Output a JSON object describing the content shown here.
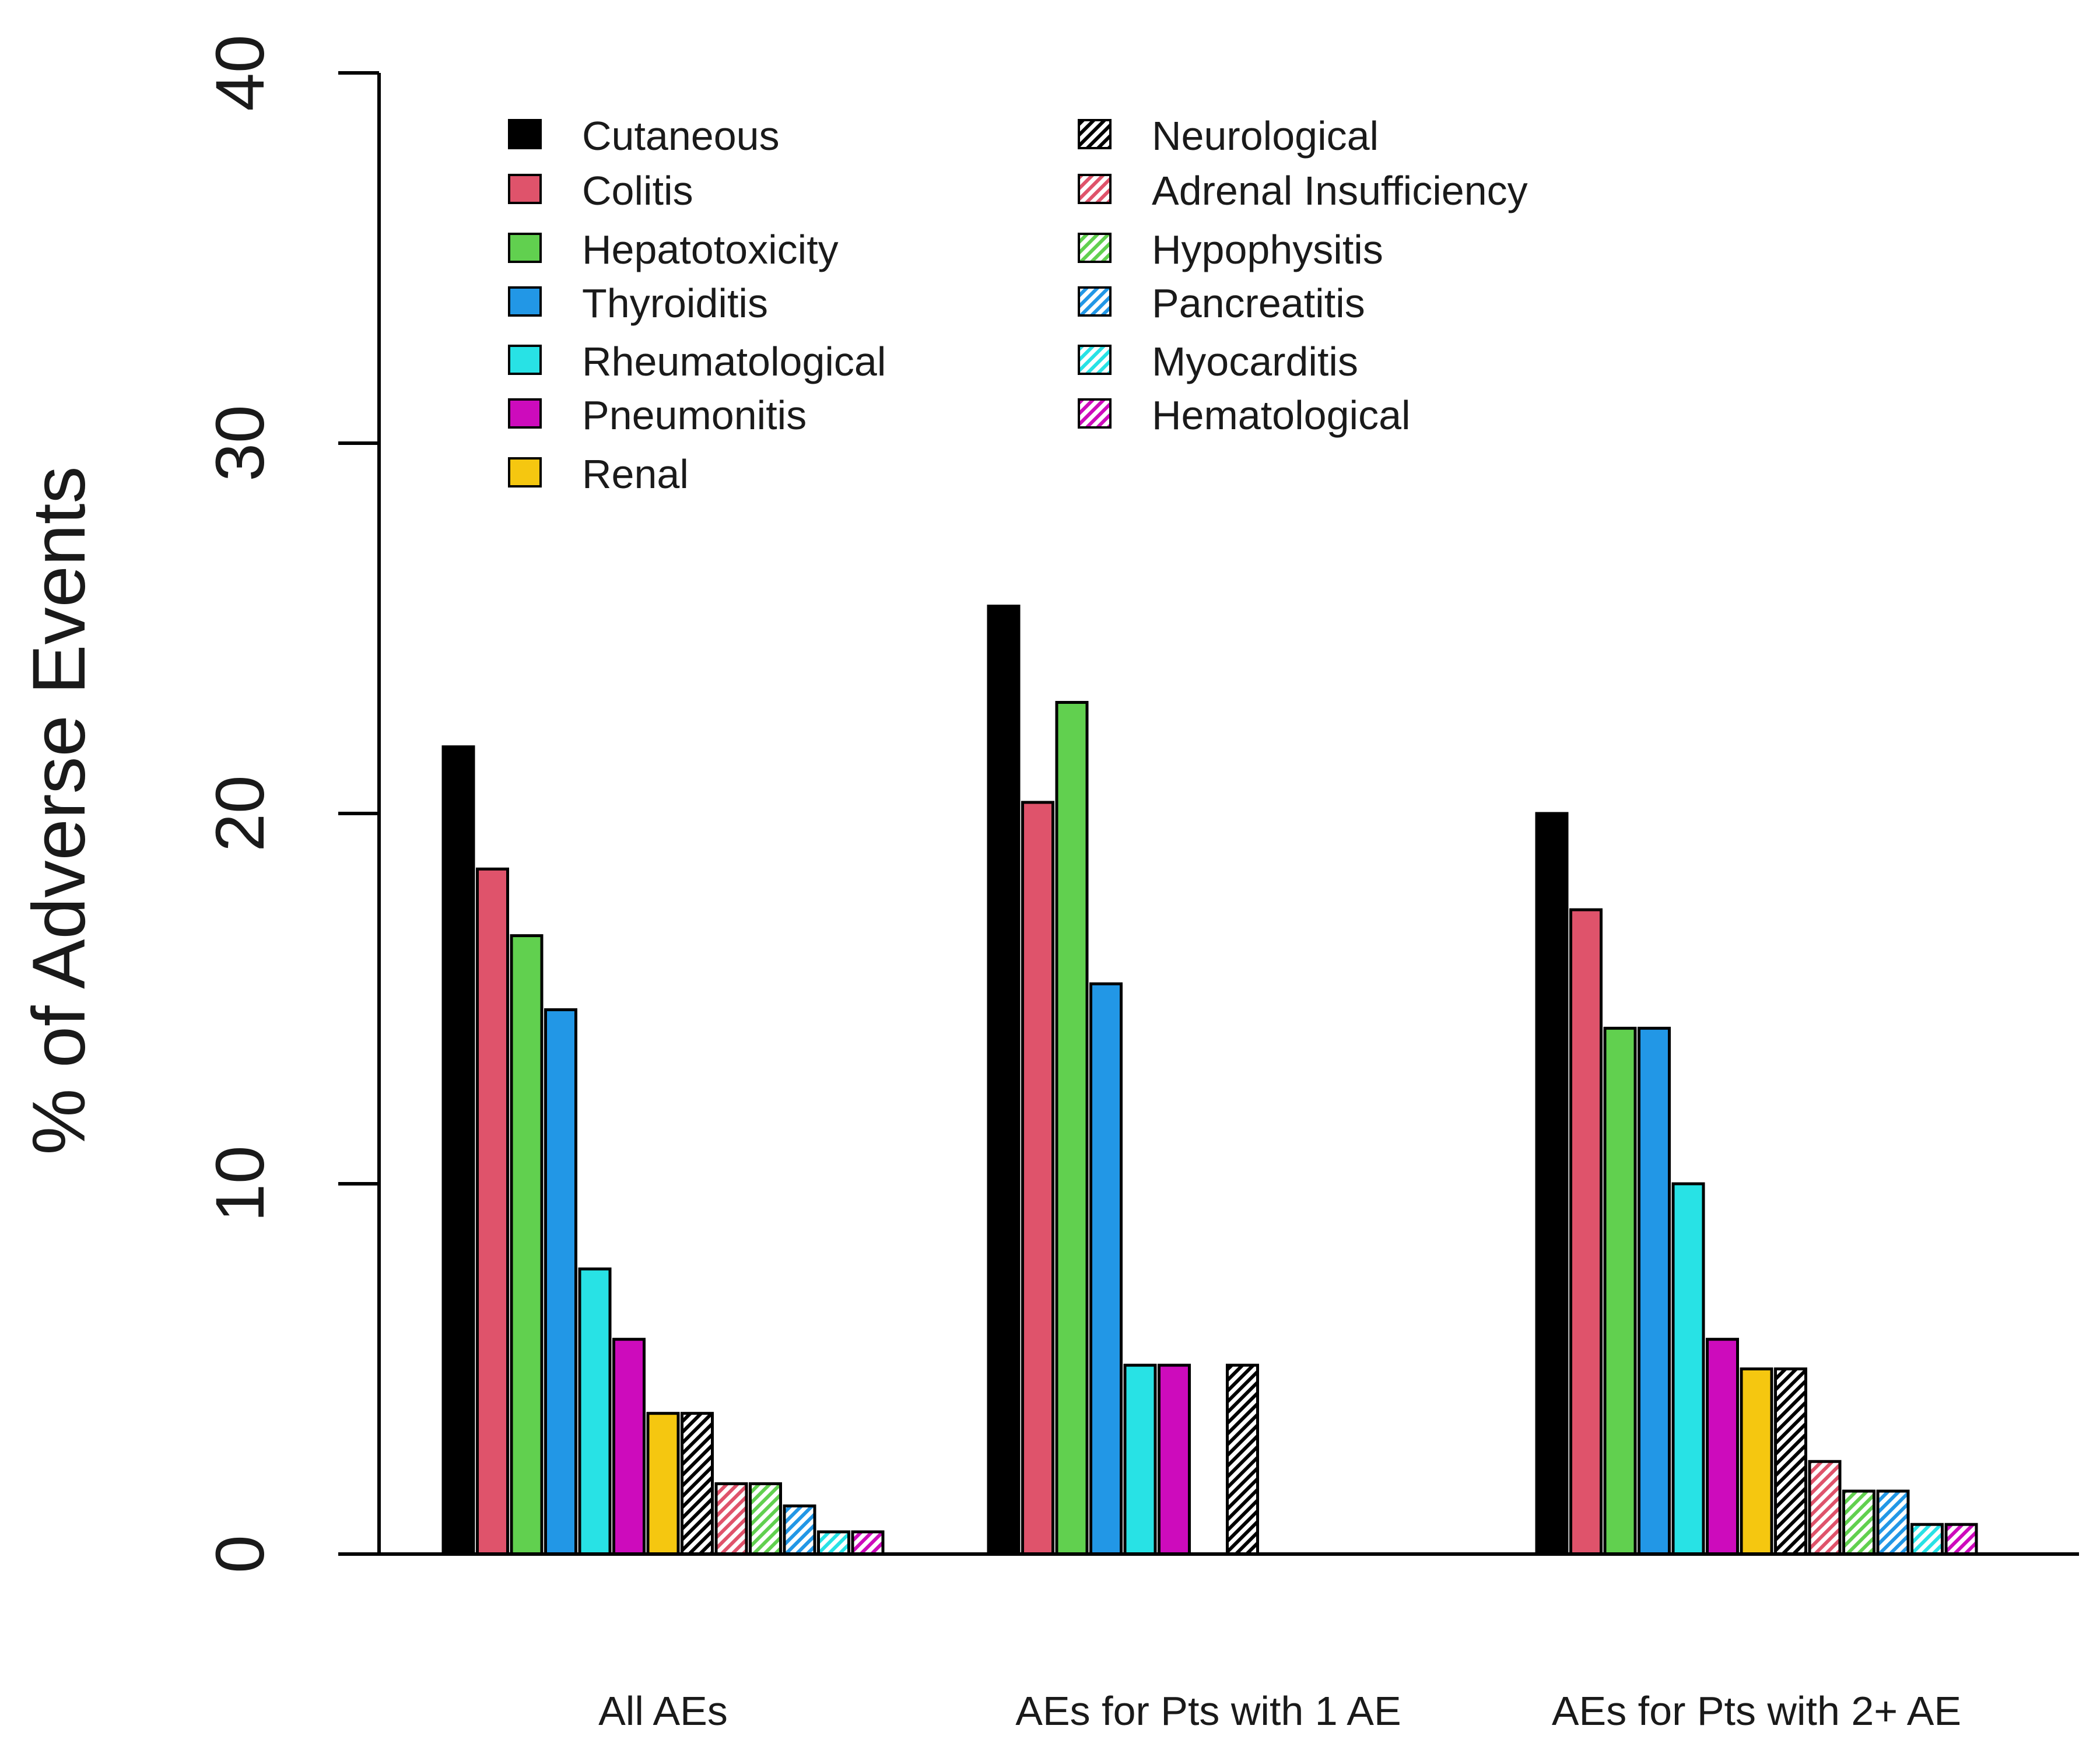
{
  "chart_data": {
    "type": "bar",
    "title": "",
    "xlabel": "",
    "ylabel": "% of Adverse Events",
    "ylim": [
      0,
      40
    ],
    "yticks": [
      0,
      10,
      20,
      30,
      40
    ],
    "grid": false,
    "legend_position": "top-left",
    "categories": [
      "All AEs",
      "AEs for Pts with 1 AE",
      "AEs for Pts with 2+ AE"
    ],
    "series": [
      {
        "name": "Cutaneous",
        "color": "#000000",
        "pattern": "solid",
        "values": [
          21.8,
          25.6,
          20.0
        ]
      },
      {
        "name": "Colitis",
        "color": "#df536b",
        "pattern": "solid",
        "values": [
          18.5,
          20.3,
          17.4
        ]
      },
      {
        "name": "Hepatotoxicity",
        "color": "#61d04f",
        "pattern": "solid",
        "values": [
          16.7,
          23.0,
          14.2
        ]
      },
      {
        "name": "Thyroiditis",
        "color": "#2297e6",
        "pattern": "solid",
        "values": [
          14.7,
          15.4,
          14.2
        ]
      },
      {
        "name": "Rheumatological",
        "color": "#28e2e5",
        "pattern": "solid",
        "values": [
          7.7,
          5.1,
          10.0
        ]
      },
      {
        "name": "Pneumonitis",
        "color": "#cd0bbc",
        "pattern": "solid",
        "values": [
          5.8,
          5.1,
          5.8
        ]
      },
      {
        "name": "Renal",
        "color": "#f5c710",
        "pattern": "solid",
        "values": [
          3.8,
          0,
          5.0
        ]
      },
      {
        "name": "Neurological",
        "color": "#000000",
        "pattern": "hatch",
        "values": [
          3.8,
          5.1,
          5.0
        ]
      },
      {
        "name": "Adrenal Insufficiency",
        "color": "#df536b",
        "pattern": "hatch",
        "values": [
          1.9,
          0,
          2.5
        ]
      },
      {
        "name": "Hypophysitis",
        "color": "#61d04f",
        "pattern": "hatch",
        "values": [
          1.9,
          0,
          1.7
        ]
      },
      {
        "name": "Pancreatitis",
        "color": "#2297e6",
        "pattern": "hatch",
        "values": [
          1.3,
          0,
          1.7
        ]
      },
      {
        "name": "Myocarditis",
        "color": "#28e2e5",
        "pattern": "hatch",
        "values": [
          0.6,
          0,
          0.8
        ]
      },
      {
        "name": "Hematological",
        "color": "#cd0bbc",
        "pattern": "hatch",
        "values": [
          0.6,
          0,
          0.8
        ]
      }
    ]
  }
}
